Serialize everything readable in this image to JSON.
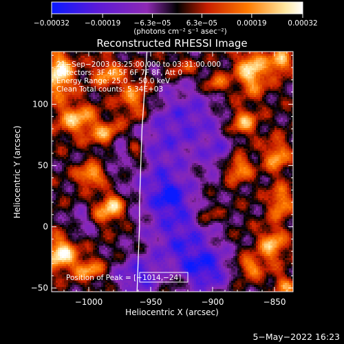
{
  "chart_data": {
    "type": "heatmap",
    "title": "Reconstructed RHESSI Image",
    "xlabel": "Heliocentric X (arcsec)",
    "ylabel": "Heliocentric Y (arcsec)",
    "xlim": [
      -1030,
      -835
    ],
    "ylim": [
      -53,
      143
    ],
    "xticks": [
      -1000,
      -950,
      -900,
      -850
    ],
    "xtick_labels": [
      "−1000",
      "−950",
      "−900",
      "−850"
    ],
    "yticks": [
      -50,
      0,
      50,
      100
    ],
    "ytick_labels": [
      "−50",
      "0",
      "50",
      "100"
    ],
    "colorbar": {
      "range": [
        -0.00032,
        0.00032
      ],
      "tick_values": [
        -0.00032,
        -0.00019,
        -6.3e-05,
        6.3e-05,
        0.00019,
        0.00032
      ],
      "tick_labels": [
        "−0.00032",
        "−0.00019",
        "−6.3e−05",
        "6.3e−05",
        "0.00019",
        "0.00032"
      ],
      "unit_label": "(photons cm⁻² s⁻¹ asec⁻²)",
      "colors": [
        "#0a1aff",
        "#5a1ad8",
        "#8d29b4",
        "#000000",
        "#c81e00",
        "#ff7a00",
        "#ffe8a0",
        "#ffffff"
      ]
    },
    "annotations": [
      "21−Sep−2003 03:25:00.000 to 03:31:00.000",
      "Detectors: 3F 4F 5F 6F 7F 8F, Att 0",
      "Energy Range: 25.0 − 50.0 keV",
      "Clean    Total counts: 5.34E+03"
    ],
    "peak": {
      "label": "Position of Peak = [−1014,−24]",
      "x": -1014,
      "y": -24
    },
    "limb": [
      [
        -953,
        143
      ],
      [
        -955,
        110
      ],
      [
        -957,
        80
      ],
      [
        -958,
        50
      ],
      [
        -959,
        20
      ],
      [
        -959,
        0
      ],
      [
        -960,
        -25
      ],
      [
        -961,
        -53
      ]
    ],
    "hotspots": [
      [
        -1024,
        125,
        12,
        18,
        1.0
      ],
      [
        -1010,
        88,
        16,
        13,
        0.75
      ],
      [
        -985,
        125,
        12,
        11,
        0.65
      ],
      [
        -985,
        75,
        13,
        11,
        0.7
      ],
      [
        -998,
        42,
        11,
        9,
        0.8
      ],
      [
        -985,
        12,
        14,
        11,
        0.6
      ],
      [
        -1023,
        -22,
        13,
        13,
        1.0
      ],
      [
        -1000,
        -35,
        12,
        9,
        0.65
      ],
      [
        -980,
        20,
        9,
        9,
        0.5
      ],
      [
        -963,
        103,
        14,
        20,
        0.7
      ],
      [
        -962,
        60,
        10,
        13,
        0.6
      ],
      [
        -868,
        127,
        13,
        18,
        0.9
      ],
      [
        -845,
        135,
        8,
        10,
        0.85
      ],
      [
        -875,
        85,
        11,
        11,
        0.7
      ],
      [
        -880,
        48,
        11,
        11,
        0.75
      ],
      [
        -848,
        58,
        10,
        13,
        0.7
      ],
      [
        -845,
        20,
        9,
        13,
        0.7
      ],
      [
        -852,
        -15,
        11,
        14,
        0.75
      ],
      [
        -870,
        -33,
        11,
        9,
        0.65
      ],
      [
        -842,
        -48,
        9,
        8,
        0.6
      ],
      [
        -897,
        117,
        9,
        9,
        0.55
      ],
      [
        -925,
        130,
        12,
        8,
        0.4
      ],
      [
        -905,
        10,
        9,
        8,
        0.45
      ],
      [
        -932,
        -42,
        9,
        7,
        0.35
      ]
    ],
    "coldspots": [
      [
        -945,
        60,
        30,
        50,
        0.55
      ],
      [
        -925,
        -10,
        25,
        30,
        0.65
      ],
      [
        -905,
        -35,
        20,
        18,
        0.75
      ],
      [
        -960,
        -40,
        18,
        14,
        0.7
      ],
      [
        -915,
        90,
        22,
        25,
        0.45
      ],
      [
        -935,
        25,
        15,
        15,
        0.6
      ],
      [
        -895,
        60,
        14,
        18,
        0.45
      ],
      [
        -975,
        65,
        10,
        10,
        0.4
      ],
      [
        -1005,
        5,
        10,
        12,
        0.4
      ]
    ]
  },
  "footer": {
    "timestamp": "5−May−2022 16:23"
  }
}
